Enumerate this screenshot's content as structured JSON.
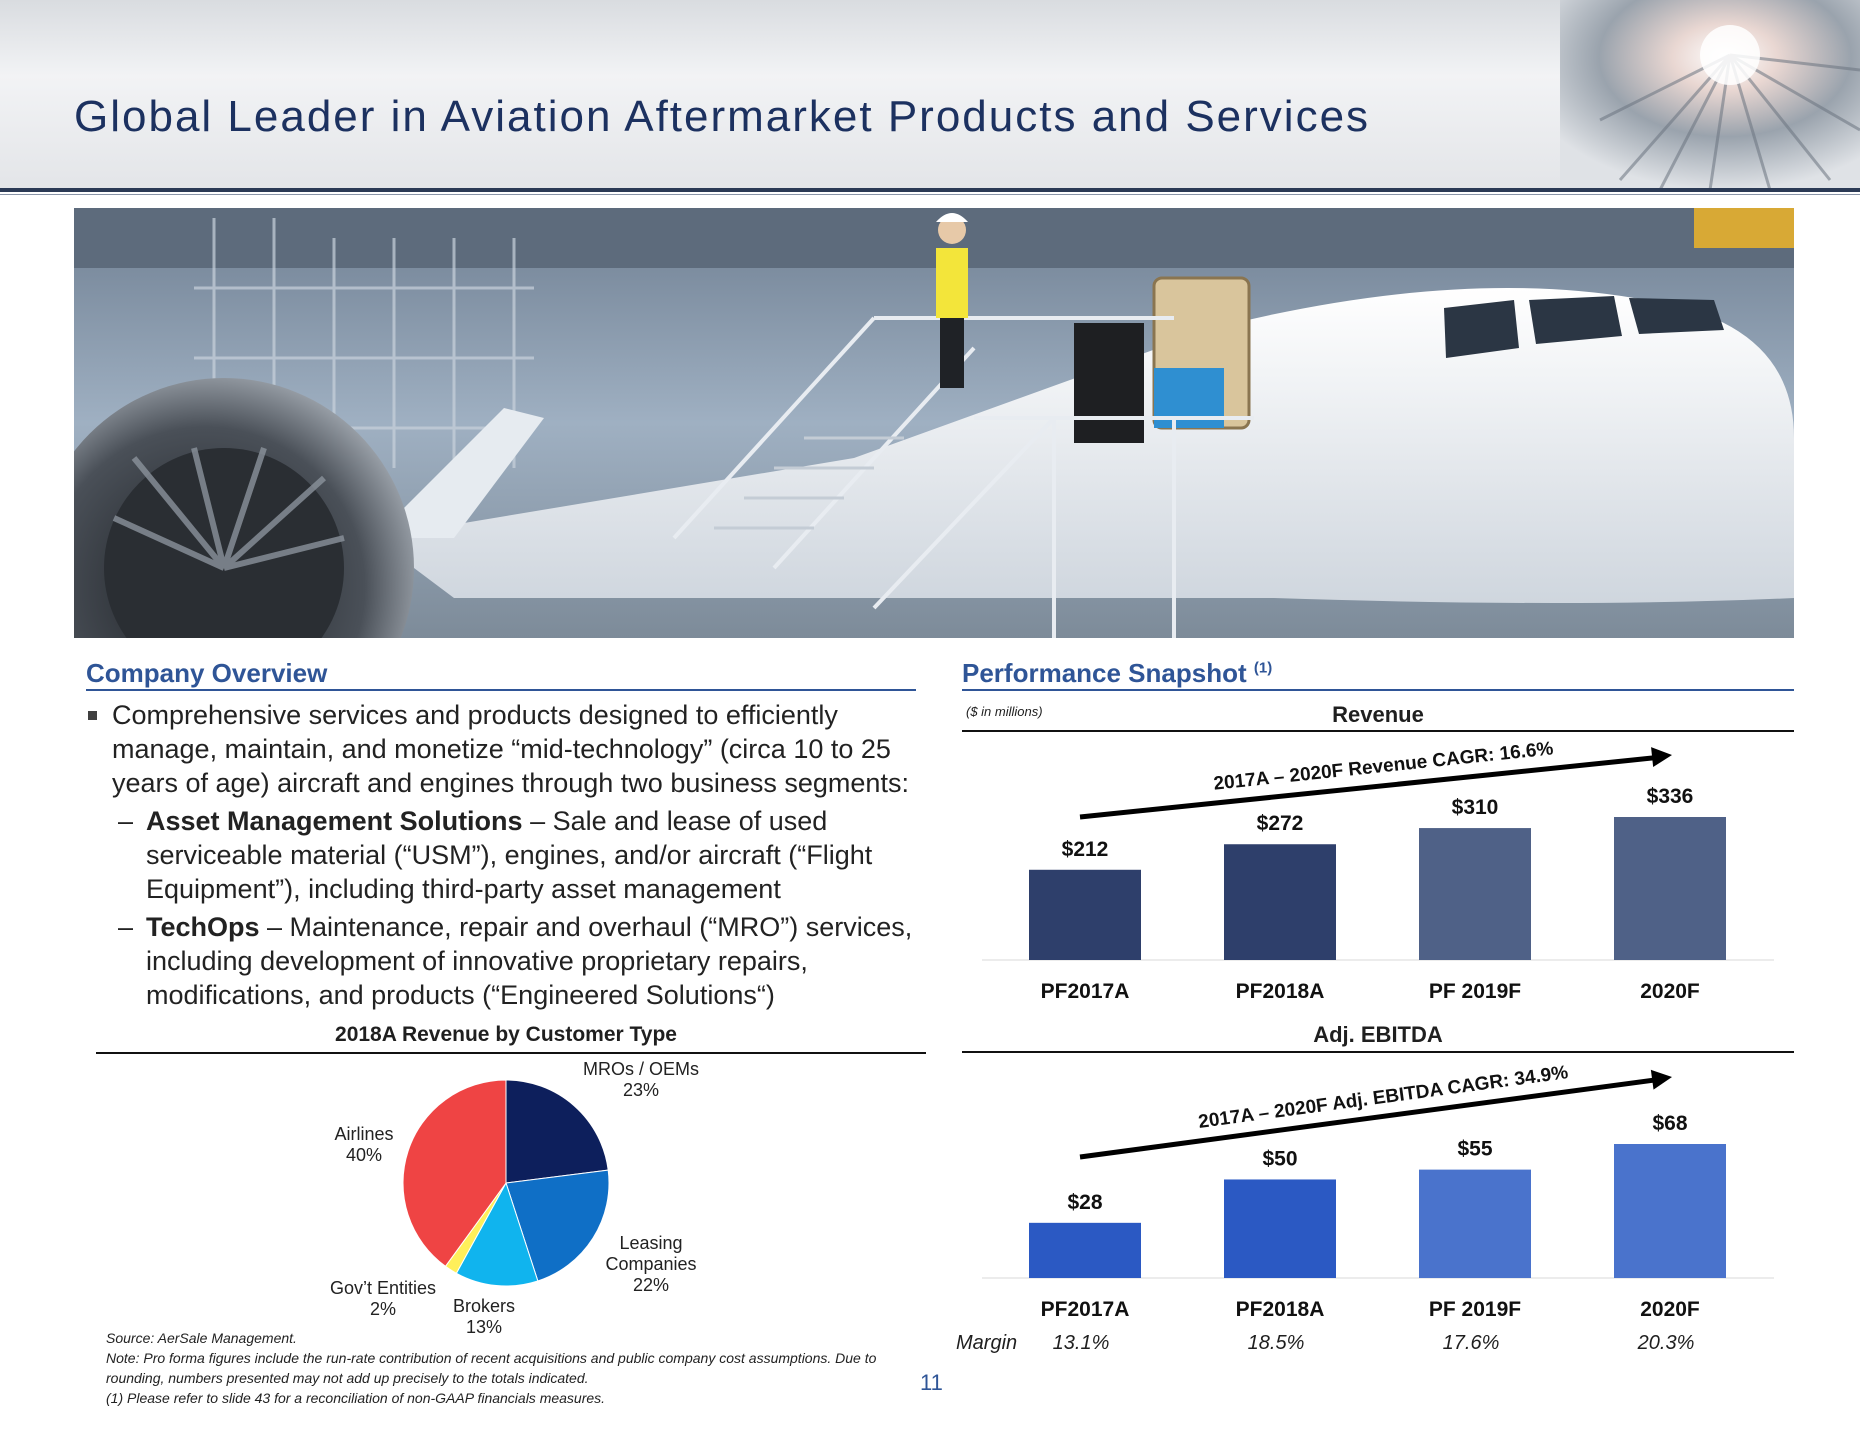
{
  "page": {
    "title": "Global Leader in Aviation Aftermarket Products and Services",
    "page_number": "11"
  },
  "overview": {
    "heading": "Company Overview",
    "intro": "Comprehensive services and products designed to efficiently manage, maintain, and monetize “mid-technology” (circa 10 to 25 years of age) aircraft and engines through two business segments:",
    "segments": [
      {
        "name": "Asset Management Solutions",
        "desc": " – Sale and lease of used serviceable material (“USM”), engines, and/or aircraft (“Flight Equipment”), including third-party asset management"
      },
      {
        "name": "TechOps",
        "desc": " – Maintenance, repair and overhaul (“MRO”) services, including development of innovative proprietary repairs, modifications, and products (“Engineered Solutions“)"
      }
    ],
    "dash": "–"
  },
  "pie": {
    "title": "2018A Revenue by Customer Type",
    "slices": [
      {
        "name": "MROs / OEMs",
        "pct": "23%",
        "value": 23,
        "color": "#0d1f5c"
      },
      {
        "name": "Leasing Companies",
        "name_lines": [
          "Leasing",
          "Companies"
        ],
        "pct": "22%",
        "value": 22,
        "color": "#0f6fc6"
      },
      {
        "name": "Brokers",
        "pct": "13%",
        "value": 13,
        "color": "#10b4ee"
      },
      {
        "name": "Gov’t Entities",
        "pct": "2%",
        "value": 2,
        "color": "#ffef5a"
      },
      {
        "name": "Airlines",
        "pct": "40%",
        "value": 40,
        "color": "#ef4444"
      }
    ]
  },
  "performance": {
    "heading": "Performance Snapshot",
    "heading_sup": "(1)",
    "units": "($ in millions)"
  },
  "chart_data": [
    {
      "type": "bar",
      "title": "Revenue",
      "categories": [
        "PF2017A",
        "PF2018A",
        "PF 2019F",
        "2020F"
      ],
      "values": [
        212,
        272,
        310,
        336
      ],
      "value_labels": [
        "$212",
        "$272",
        "$310",
        "$336"
      ],
      "colors": [
        "#2e3f6b",
        "#2e3f6b",
        "#4f6187",
        "#4f6187"
      ],
      "annotation": "2017A – 2020F Revenue CAGR: 16.6%",
      "ylim": [
        0,
        336
      ]
    },
    {
      "type": "bar",
      "title": "Adj. EBITDA",
      "categories": [
        "PF2017A",
        "PF2018A",
        "PF 2019F",
        "2020F"
      ],
      "values": [
        28,
        50,
        55,
        68
      ],
      "value_labels": [
        "$28",
        "$50",
        "$55",
        "$68"
      ],
      "colors": [
        "#2b59c3",
        "#2b59c3",
        "#4a73cc",
        "#4a73cc"
      ],
      "annotation": "2017A – 2020F Adj. EBITDA CAGR: 34.9%",
      "ylim": [
        0,
        68
      ],
      "margin_label": "Margin",
      "margins": [
        "13.1%",
        "18.5%",
        "17.6%",
        "20.3%"
      ]
    }
  ],
  "footnotes": [
    "Source: AerSale Management.",
    "Note: Pro forma figures include the run-rate contribution of recent acquisitions and public company cost assumptions. Due to rounding, numbers presented may not add up precisely to the totals indicated.",
    "(1)  Please refer to slide 43 for a reconciliation of non-GAAP financials measures."
  ]
}
